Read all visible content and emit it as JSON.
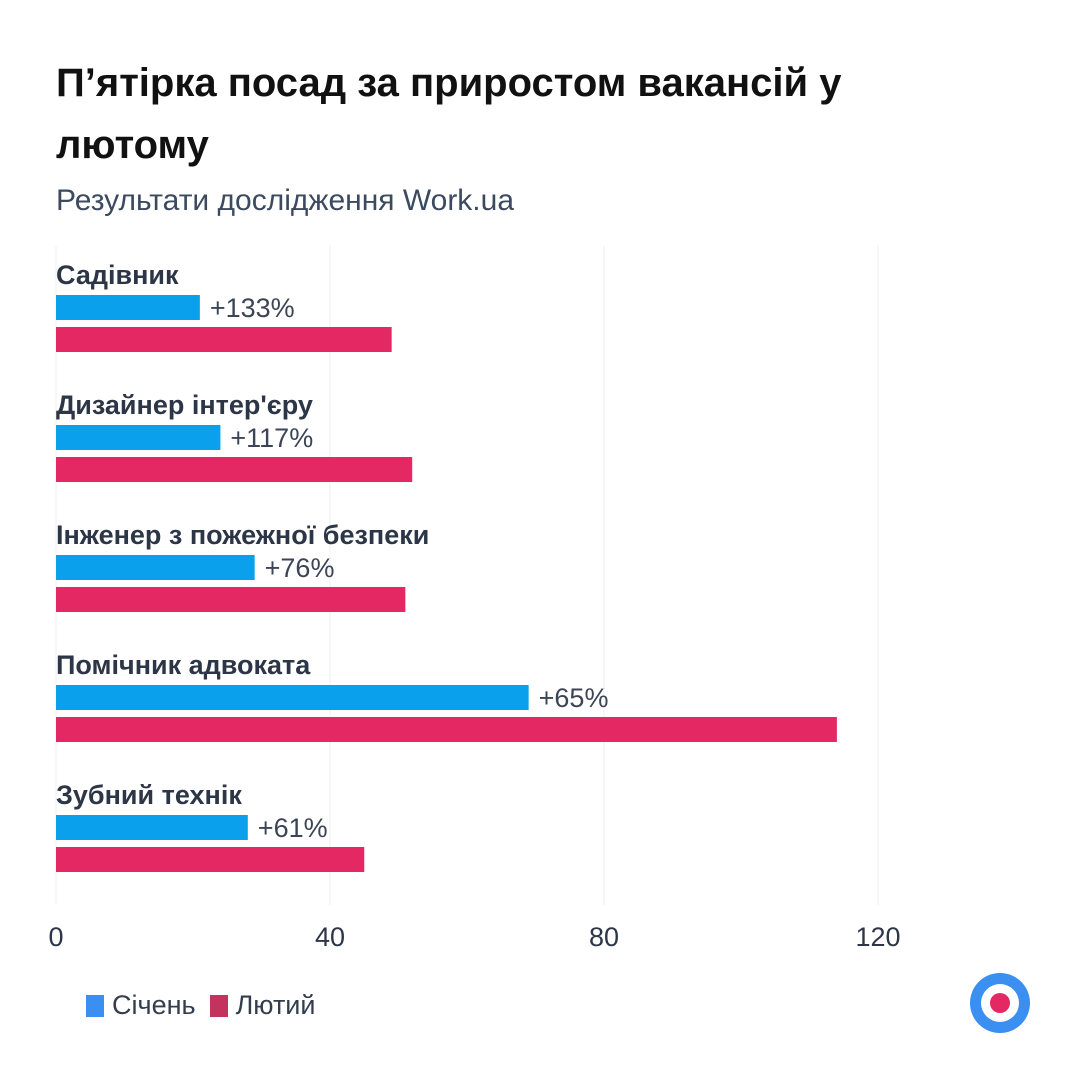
{
  "title": "П’ятірка посад за приростом вакансій у лютому",
  "subtitle": "Результати дослідження Work.ua",
  "colors": {
    "january": "#0aa0ec",
    "february": "#e32864",
    "grid": "#eceff3",
    "label": "#2c3646",
    "logo_ring": "#3b8ff0",
    "logo_dot": "#e32864"
  },
  "legend": [
    {
      "name": "Січень",
      "color": "#3b8ff0"
    },
    {
      "name": "Лютий",
      "color": "#c4325e"
    }
  ],
  "logo_icon": "work-ua-target-logo",
  "chart_data": {
    "type": "bar",
    "orientation": "horizontal",
    "categories": [
      "Садівник",
      "Дизайнер інтер'єру",
      "Інженер з пожежної безпеки",
      "Помічник адвоката",
      "Зубний технік"
    ],
    "series": [
      {
        "name": "Січень",
        "values": [
          21,
          24,
          29,
          69,
          28
        ]
      },
      {
        "name": "Лютий",
        "values": [
          49,
          52,
          51,
          114,
          45
        ]
      }
    ],
    "data_labels": [
      "+133%",
      "+117%",
      "+76%",
      "+65%",
      "+61%"
    ],
    "x_ticks": [
      0,
      40,
      80,
      120
    ],
    "xlim": [
      0,
      140
    ],
    "grid": true,
    "legend_position": "bottom-left"
  }
}
